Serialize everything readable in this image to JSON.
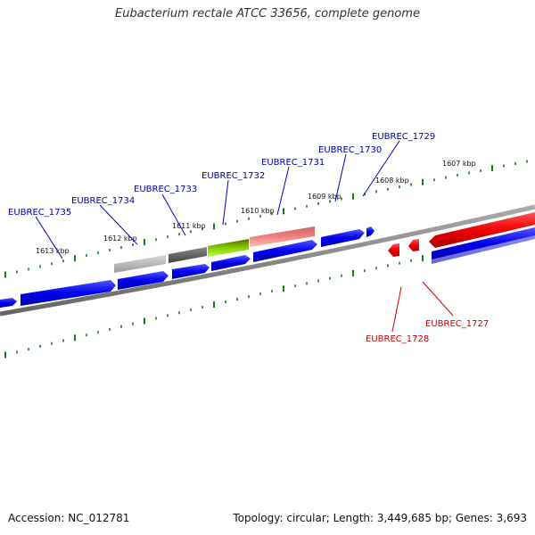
{
  "title": "Eubacterium rectale ATCC 33656, complete genome",
  "footer": {
    "accession": "Accession: NC_012781",
    "summary": "Topology: circular; Length: 3,449,685 bp; Genes: 3,693"
  },
  "colors": {
    "forward_gene": "#0000ee",
    "reverse_gene": "#ee0000",
    "backbone": "#888888",
    "tick": "#1a7a1a",
    "label_forward": "#00008b",
    "label_reverse": "#cc0000"
  },
  "scale": [
    "1613 kbp",
    "1612 kbp",
    "1611 kbp",
    "1610 kbp",
    "1609 kbp",
    "1608 kbp",
    "1607 kbp"
  ],
  "forward_labels": [
    "EUBREC_1735",
    "EUBREC_1734",
    "EUBREC_1733",
    "EUBREC_1732",
    "EUBREC_1731",
    "EUBREC_1730",
    "EUBREC_1729"
  ],
  "reverse_labels": [
    "EUBREC_1728",
    "EUBREC_1727"
  ]
}
